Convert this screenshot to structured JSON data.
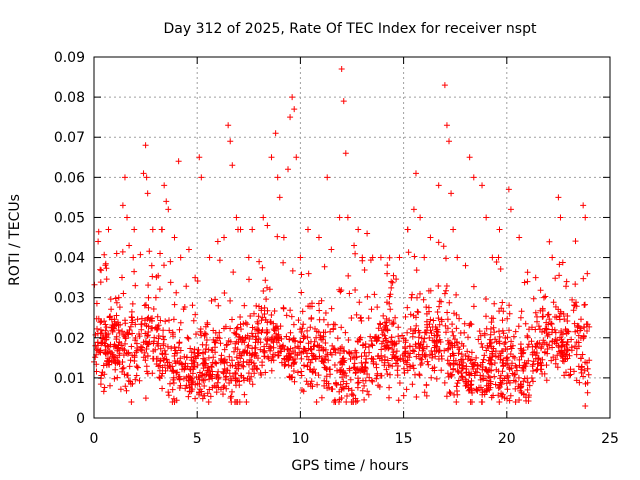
{
  "chart_data": {
    "type": "scatter",
    "title": "Day 312 of 2025, Rate Of TEC Index for receiver nspt",
    "xlabel": "GPS time / hours",
    "ylabel": "ROTI / TECUs",
    "xlim": [
      0,
      25
    ],
    "ylim": [
      0,
      0.09
    ],
    "x_ticks": [
      0,
      5,
      10,
      15,
      20,
      25
    ],
    "y_ticks": [
      0,
      0.01,
      0.02,
      0.03,
      0.04,
      0.05,
      0.06,
      0.07,
      0.08,
      0.09
    ],
    "x_tick_labels": [
      "0",
      "5",
      "10",
      "15",
      "20",
      "25"
    ],
    "y_tick_labels": [
      "0",
      "0.01",
      "0.02",
      "0.03",
      "0.04",
      "0.05",
      "0.06",
      "0.07",
      "0.08",
      "0.09"
    ],
    "grid": true,
    "marker": "+",
    "series": [
      {
        "name": "ROTI",
        "color": "#ff0000",
        "points": [
          [
            0.0,
            0.014
          ],
          [
            0.2,
            0.044
          ],
          [
            0.3,
            0.037
          ],
          [
            0.6,
            0.02
          ],
          [
            1.0,
            0.024
          ],
          [
            1.1,
            0.041
          ],
          [
            1.2,
            0.03
          ],
          [
            1.4,
            0.053
          ],
          [
            1.5,
            0.06
          ],
          [
            1.6,
            0.05
          ],
          [
            1.7,
            0.043
          ],
          [
            1.9,
            0.04
          ],
          [
            2.0,
            0.033
          ],
          [
            2.4,
            0.061
          ],
          [
            2.5,
            0.068
          ],
          [
            2.55,
            0.06
          ],
          [
            2.6,
            0.056
          ],
          [
            2.8,
            0.038
          ],
          [
            3.0,
            0.03
          ],
          [
            3.2,
            0.041
          ],
          [
            3.4,
            0.058
          ],
          [
            3.5,
            0.054
          ],
          [
            3.6,
            0.052
          ],
          [
            3.7,
            0.039
          ],
          [
            3.9,
            0.045
          ],
          [
            4.1,
            0.064
          ],
          [
            4.2,
            0.04
          ],
          [
            4.6,
            0.042
          ],
          [
            4.9,
            0.035
          ],
          [
            5.1,
            0.065
          ],
          [
            5.2,
            0.06
          ],
          [
            5.6,
            0.04
          ],
          [
            6.0,
            0.044
          ],
          [
            6.3,
            0.045
          ],
          [
            6.5,
            0.073
          ],
          [
            6.6,
            0.069
          ],
          [
            6.7,
            0.063
          ],
          [
            6.9,
            0.05
          ],
          [
            7.1,
            0.047
          ],
          [
            7.5,
            0.04
          ],
          [
            8.0,
            0.039
          ],
          [
            8.2,
            0.05
          ],
          [
            8.4,
            0.048
          ],
          [
            8.6,
            0.065
          ],
          [
            8.8,
            0.071
          ],
          [
            8.9,
            0.06
          ],
          [
            9.0,
            0.055
          ],
          [
            9.2,
            0.045
          ],
          [
            9.4,
            0.062
          ],
          [
            9.5,
            0.075
          ],
          [
            9.6,
            0.08
          ],
          [
            9.7,
            0.077
          ],
          [
            9.8,
            0.065
          ],
          [
            10.0,
            0.04
          ],
          [
            10.4,
            0.036
          ],
          [
            10.9,
            0.045
          ],
          [
            11.3,
            0.06
          ],
          [
            11.5,
            0.042
          ],
          [
            11.9,
            0.05
          ],
          [
            12.0,
            0.087
          ],
          [
            12.1,
            0.079
          ],
          [
            12.2,
            0.066
          ],
          [
            12.3,
            0.05
          ],
          [
            12.6,
            0.043
          ],
          [
            12.8,
            0.047
          ],
          [
            13.0,
            0.04
          ],
          [
            13.5,
            0.04
          ],
          [
            13.9,
            0.04
          ],
          [
            14.2,
            0.036
          ],
          [
            14.4,
            0.034
          ],
          [
            14.8,
            0.04
          ],
          [
            15.2,
            0.047
          ],
          [
            15.5,
            0.052
          ],
          [
            15.6,
            0.061
          ],
          [
            15.8,
            0.05
          ],
          [
            16.0,
            0.04
          ],
          [
            16.3,
            0.045
          ],
          [
            16.7,
            0.058
          ],
          [
            17.0,
            0.083
          ],
          [
            17.1,
            0.073
          ],
          [
            17.2,
            0.069
          ],
          [
            17.3,
            0.056
          ],
          [
            17.4,
            0.047
          ],
          [
            17.6,
            0.04
          ],
          [
            18.0,
            0.038
          ],
          [
            18.2,
            0.065
          ],
          [
            18.4,
            0.06
          ],
          [
            18.8,
            0.058
          ],
          [
            19.0,
            0.05
          ],
          [
            19.3,
            0.04
          ],
          [
            19.6,
            0.04
          ],
          [
            20.1,
            0.057
          ],
          [
            20.2,
            0.052
          ],
          [
            20.6,
            0.045
          ],
          [
            21.0,
            0.034
          ],
          [
            21.4,
            0.035
          ],
          [
            21.8,
            0.03
          ],
          [
            22.2,
            0.04
          ],
          [
            22.5,
            0.055
          ],
          [
            22.6,
            0.05
          ],
          [
            22.9,
            0.034
          ],
          [
            23.3,
            0.028
          ],
          [
            23.7,
            0.053
          ],
          [
            23.8,
            0.05
          ],
          [
            23.9,
            0.036
          ],
          [
            23.8,
            0.003
          ]
        ]
      }
    ]
  }
}
